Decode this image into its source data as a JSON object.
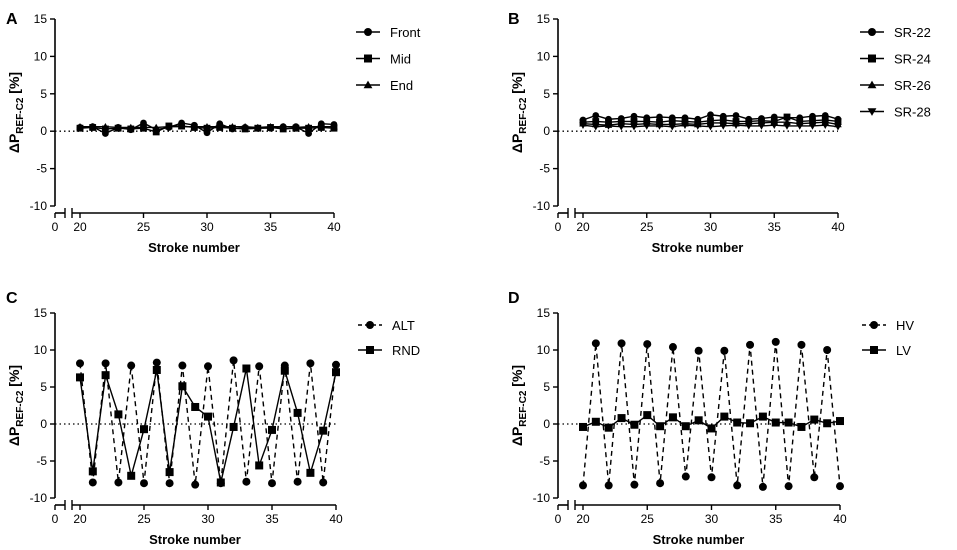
{
  "chart_data": [
    {
      "panel": "A",
      "type": "line",
      "xlabel": "Stroke number",
      "ylabel": {
        "main": "ΔP",
        "sub": "REF-C2",
        "unit": " [%]"
      },
      "ylim": [
        -10,
        15
      ],
      "yticks": [
        -10,
        -5,
        0,
        5,
        10,
        15
      ],
      "xlim": [
        20,
        40
      ],
      "xticks": [
        20,
        25,
        30,
        35,
        40
      ],
      "x_break_label": "0",
      "zero_line": "dotted",
      "legend_position": "right",
      "x": [
        20,
        21,
        22,
        23,
        24,
        25,
        26,
        27,
        28,
        29,
        30,
        31,
        32,
        33,
        34,
        35,
        36,
        37,
        38,
        39,
        40
      ],
      "series": [
        {
          "name": "Front",
          "marker": "circle",
          "dash": "solid",
          "values": [
            0.5,
            0.6,
            -0.3,
            0.5,
            0.2,
            1.1,
            0.2,
            0.5,
            1.1,
            0.8,
            -0.2,
            1.0,
            0.3,
            0.5,
            0.4,
            0.4,
            0.6,
            0.6,
            -0.3,
            1.0,
            0.9
          ]
        },
        {
          "name": "Mid",
          "marker": "square",
          "dash": "solid",
          "values": [
            0.4,
            0.5,
            0.3,
            0.4,
            0.3,
            0.4,
            -0.1,
            0.7,
            0.7,
            0.5,
            0.4,
            0.5,
            0.4,
            0.3,
            0.4,
            0.5,
            0.3,
            0.4,
            0.4,
            0.5,
            0.4
          ]
        },
        {
          "name": "End",
          "marker": "triangle",
          "dash": "solid",
          "values": [
            0.6,
            0.6,
            0.6,
            0.5,
            0.5,
            0.5,
            0.5,
            0.6,
            0.6,
            0.6,
            0.6,
            0.6,
            0.6,
            0.6,
            0.5,
            0.6,
            0.6,
            0.5,
            0.6,
            0.6,
            0.6
          ]
        }
      ]
    },
    {
      "panel": "B",
      "type": "line",
      "xlabel": "Stroke number",
      "ylabel": {
        "main": "ΔP",
        "sub": "REF-C2",
        "unit": " [%]"
      },
      "ylim": [
        -10,
        15
      ],
      "yticks": [
        -10,
        -5,
        0,
        5,
        10,
        15
      ],
      "xlim": [
        20,
        40
      ],
      "xticks": [
        20,
        25,
        30,
        35,
        40
      ],
      "x_break_label": "0",
      "zero_line": "dotted",
      "legend_position": "right",
      "x": [
        20,
        21,
        22,
        23,
        24,
        25,
        26,
        27,
        28,
        29,
        30,
        31,
        32,
        33,
        34,
        35,
        36,
        37,
        38,
        39,
        40
      ],
      "series": [
        {
          "name": "SR-22",
          "marker": "circle",
          "dash": "solid",
          "values": [
            1.5,
            2.1,
            1.6,
            1.7,
            2.0,
            1.8,
            1.9,
            1.8,
            1.8,
            1.6,
            2.2,
            2.0,
            2.1,
            1.6,
            1.7,
            1.9,
            1.8,
            1.8,
            2.0,
            2.1,
            1.6
          ]
        },
        {
          "name": "SR-24",
          "marker": "square",
          "dash": "solid",
          "values": [
            1.2,
            1.3,
            1.2,
            1.3,
            1.3,
            1.3,
            1.2,
            1.4,
            1.3,
            1.2,
            1.4,
            1.5,
            1.3,
            1.3,
            1.4,
            1.3,
            1.9,
            1.3,
            1.4,
            1.5,
            1.3
          ]
        },
        {
          "name": "SR-26",
          "marker": "triangle",
          "dash": "solid",
          "values": [
            1.0,
            0.9,
            0.8,
            1.0,
            0.9,
            1.0,
            0.9,
            0.9,
            1.0,
            0.9,
            1.1,
            1.1,
            1.0,
            1.0,
            1.1,
            1.2,
            1.2,
            1.0,
            1.1,
            1.2,
            0.9
          ]
        },
        {
          "name": "SR-28",
          "marker": "triangle-down",
          "dash": "solid",
          "values": [
            0.8,
            0.6,
            0.7,
            0.6,
            0.6,
            0.7,
            0.7,
            0.6,
            0.8,
            0.7,
            0.6,
            0.7,
            0.8,
            0.7,
            0.7,
            0.8,
            0.7,
            0.7,
            0.7,
            0.8,
            0.6
          ]
        }
      ]
    },
    {
      "panel": "C",
      "type": "line",
      "xlabel": "Stroke number",
      "ylabel": {
        "main": "ΔP",
        "sub": "REF-C2",
        "unit": " [%]"
      },
      "ylim": [
        -10,
        15
      ],
      "yticks": [
        -10,
        -5,
        0,
        5,
        10,
        15
      ],
      "xlim": [
        20,
        40
      ],
      "xticks": [
        20,
        25,
        30,
        35,
        40
      ],
      "x_break_label": "0",
      "zero_line": "dotted",
      "legend_position": "right",
      "x": [
        20,
        21,
        22,
        23,
        24,
        25,
        26,
        27,
        28,
        29,
        30,
        31,
        32,
        33,
        34,
        35,
        36,
        37,
        38,
        39,
        40
      ],
      "series": [
        {
          "name": "ALT",
          "marker": "circle",
          "dash": "dashed",
          "values": [
            8.2,
            -7.9,
            8.2,
            -7.9,
            7.9,
            -8.0,
            8.3,
            -8.0,
            7.9,
            -8.2,
            7.8,
            -8.0,
            8.6,
            -7.8,
            7.8,
            -8.0,
            7.9,
            -7.8,
            8.2,
            -7.9,
            8.0
          ]
        },
        {
          "name": "RND",
          "marker": "square",
          "dash": "solid",
          "values": [
            6.3,
            -6.4,
            6.6,
            1.3,
            -7.0,
            -0.7,
            7.3,
            -6.5,
            5.1,
            2.3,
            1.0,
            -7.9,
            -0.4,
            7.5,
            -5.6,
            -0.8,
            7.2,
            1.5,
            -6.6,
            -0.9,
            7.0
          ]
        }
      ]
    },
    {
      "panel": "D",
      "type": "line",
      "xlabel": "Stroke number",
      "ylabel": {
        "main": "ΔP",
        "sub": "REF-C2",
        "unit": " [%]"
      },
      "ylim": [
        -10,
        15
      ],
      "yticks": [
        -10,
        -5,
        0,
        5,
        10,
        15
      ],
      "xlim": [
        20,
        40
      ],
      "xticks": [
        20,
        25,
        30,
        35,
        40
      ],
      "x_break_label": "0",
      "zero_line": "dotted",
      "legend_position": "right",
      "x": [
        20,
        21,
        22,
        23,
        24,
        25,
        26,
        27,
        28,
        29,
        30,
        31,
        32,
        33,
        34,
        35,
        36,
        37,
        38,
        39,
        40
      ],
      "series": [
        {
          "name": "HV",
          "marker": "circle",
          "dash": "dashed",
          "values": [
            -8.3,
            10.9,
            -8.3,
            10.9,
            -8.2,
            10.8,
            -8.0,
            10.4,
            -7.1,
            9.9,
            -7.2,
            9.9,
            -8.3,
            10.7,
            -8.5,
            11.1,
            -8.4,
            10.7,
            -7.2,
            10.0,
            -8.4
          ]
        },
        {
          "name": "LV",
          "marker": "square",
          "dash": "solid",
          "values": [
            -0.4,
            0.3,
            -0.5,
            0.8,
            -0.1,
            1.2,
            -0.3,
            0.9,
            -0.3,
            0.5,
            -0.6,
            1.0,
            0.2,
            0.1,
            1.0,
            0.2,
            0.2,
            -0.4,
            0.6,
            0.1,
            0.4
          ]
        }
      ]
    }
  ]
}
